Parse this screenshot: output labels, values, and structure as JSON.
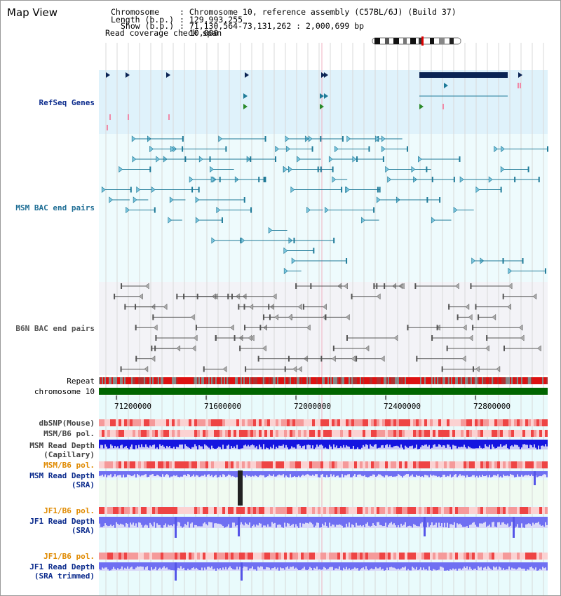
{
  "page": {
    "title": "Map View"
  },
  "header": {
    "chromosome_label": "Chromosome",
    "chromosome_value": ": Chromosome 10, reference assembly (C57BL/6J) (Build 37)",
    "length_label": "Length (b.p.)",
    "length_value": ": 129,993,255",
    "show_label": "Show (b.p.)",
    "show_value": ": 71,130,564-73,131,262 : 2,000,699 bp",
    "coverage_label": "Read coverage check span",
    "coverage_value": ": 10,000"
  },
  "tracks": {
    "refseq": "RefSeq Genes",
    "msm_bac": "MSM BAC end pairs",
    "b6n_bac": "B6N BAC end pairs",
    "repeat": "Repeat",
    "chromosome": "chromosome 10",
    "dbsnp": "dbSNP(Mouse)",
    "msm_b6_pol_1": "MSM/B6 pol.",
    "msm_depth_cap_1": "MSM Read Depth",
    "msm_depth_cap_2": "(Capillary)",
    "msm_b6_pol_2": "MSM/B6 pol.",
    "msm_depth_sra_1": "MSM Read Depth",
    "msm_depth_sra_2": "(SRA)",
    "jf1_b6_pol_1": "JF1/B6 pol.",
    "jf1_depth_sra_1": "JF1 Read Depth",
    "jf1_depth_sra_2": "(SRA)",
    "jf1_b6_pol_2": "JF1/B6 pol.",
    "jf1_depth_trim_1": "JF1 Read Depth",
    "jf1_depth_trim_2": "(SRA trimmed)"
  },
  "axis": {
    "ticks": [
      "71200000",
      "71600000",
      "72000000",
      "72400000",
      "72800000"
    ]
  },
  "colors": {
    "refseq_bg": "#dff2fb",
    "msm_bg": "#eefbfd",
    "b6n_bg": "#f3f3f7",
    "track_bg": "#e9fbfc",
    "sra_bg": "#f0fbf1",
    "msm_feature": "#1f7a98",
    "b6n_feature": "#555555",
    "gene_dark": "#0b2454",
    "chromosome_green": "#006600",
    "label_blue": "#0a2a8c",
    "label_orange": "#e08a00",
    "label_gray": "#444444",
    "depth_blue": "#1515e0",
    "depth_light": "#6f6ff2",
    "pol_red": "#ee3333"
  }
}
